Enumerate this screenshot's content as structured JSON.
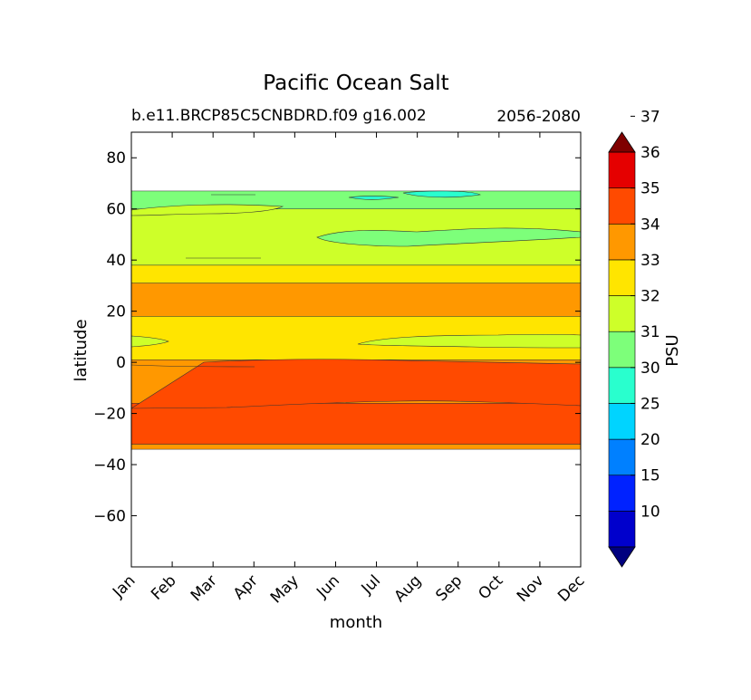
{
  "chart_data": {
    "type": "contour",
    "title": "Pacific Ocean Salt",
    "subtitle_left": "b.e11.BRCP85C5CNBDRD.f09 g16.002",
    "subtitle_right": "2056-2080",
    "xlabel": "month",
    "ylabel": "latitude",
    "x_ticks": [
      "Jan",
      "Feb",
      "Mar",
      "Apr",
      "May",
      "Jun",
      "Jul",
      "Aug",
      "Sep",
      "Oct",
      "Nov",
      "Dec"
    ],
    "ylim": [
      -80,
      90
    ],
    "y_ticks": [
      80,
      60,
      40,
      20,
      0,
      -20,
      -40,
      -60
    ],
    "y_tick_labels": [
      "80",
      "60",
      "40",
      "20",
      "0",
      "−20",
      "−40",
      "−60"
    ],
    "colorbar": {
      "label": "PSU",
      "levels": [
        10,
        15,
        20,
        25,
        30,
        31,
        32,
        33,
        34,
        35,
        36,
        37
      ],
      "tick_labels": [
        "10",
        "15",
        "20",
        "25",
        "30",
        "31",
        "32",
        "33",
        "34",
        "35",
        "36",
        "37"
      ],
      "colors": [
        "#00007f",
        "#0000cc",
        "#0022ff",
        "#0080ff",
        "#00d4ff",
        "#29ffce",
        "#7dff7a",
        "#ceff29",
        "#ffe500",
        "#ff9800",
        "#ff4a00",
        "#e50000",
        "#7f0000"
      ],
      "extend": "both"
    },
    "bands": [
      {
        "salinity": "34-35",
        "lat_min": -34,
        "lat_max": -32,
        "color": "#ff9800"
      },
      {
        "salinity": "35-36",
        "lat_min": -32,
        "lat_max": -16,
        "color": "#ff4a00"
      },
      {
        "salinity": "34-35",
        "lat_min": -16,
        "lat_max": 1,
        "color": "#ff9800"
      },
      {
        "salinity": "33-34",
        "lat_min": 1,
        "lat_max": 18,
        "color": "#ffe500"
      },
      {
        "salinity": "34-35",
        "lat_min": 18,
        "lat_max": 31,
        "color": "#ff9800"
      },
      {
        "salinity": "33-34",
        "lat_min": 31,
        "lat_max": 38,
        "color": "#ffe500"
      },
      {
        "salinity": "32-33",
        "lat_min": 38,
        "lat_max": 60,
        "color": "#ceff29"
      },
      {
        "salinity": "31-32",
        "lat_min": 60,
        "lat_max": 67,
        "color": "#7dff7a"
      }
    ]
  }
}
